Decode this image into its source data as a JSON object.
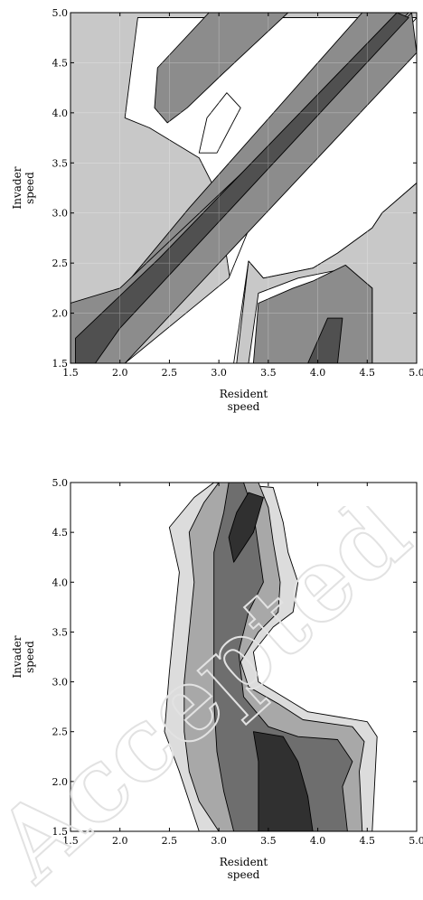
{
  "chart_data": [
    {
      "type": "contour",
      "title": "",
      "xlabel": "Resident speed",
      "xlabel_lines": [
        "Resident",
        "speed"
      ],
      "ylabel": "Invader speed",
      "ylabel_lines": [
        "Invader",
        "speed"
      ],
      "xlim": [
        1.5,
        5.0
      ],
      "ylim": [
        1.5,
        5.0
      ],
      "xticks": [
        "1.5",
        "2.0",
        "2.5",
        "3.0",
        "3.5",
        "4.0",
        "4.5",
        "5.0"
      ],
      "yticks": [
        "1.5",
        "2.0",
        "2.5",
        "3.0",
        "3.5",
        "4.0",
        "4.5",
        "5.0"
      ],
      "grid": true,
      "fill_shades": [
        "#ffffff",
        "#c8c8c8",
        "#8c8c8c",
        "#505050"
      ],
      "regions": [
        {
          "level": 1,
          "points": [
            [
              1.5,
              5.0
            ],
            [
              5.0,
              5.0
            ],
            [
              5.0,
              3.55
            ],
            [
              3.3,
              1.5
            ],
            [
              1.5,
              1.5
            ]
          ]
        },
        {
          "level": 0,
          "points": [
            [
              2.18,
              4.95
            ],
            [
              5.0,
              4.95
            ],
            [
              5.0,
              3.95
            ],
            [
              3.15,
              2.1
            ],
            [
              2.98,
              3.2
            ],
            [
              2.8,
              3.55
            ],
            [
              2.3,
              3.85
            ],
            [
              2.05,
              3.95
            ]
          ]
        },
        {
          "level": 0,
          "points": [
            [
              2.05,
              1.5
            ],
            [
              5.0,
              1.5
            ],
            [
              5.0,
              4.95
            ],
            [
              3.42,
              3.12
            ],
            [
              3.1,
              2.35
            ]
          ]
        },
        {
          "level": 2,
          "points": [
            [
              1.5,
              1.75
            ],
            [
              2.0,
              2.1
            ],
            [
              4.92,
              5.0
            ],
            [
              4.45,
              5.0
            ],
            [
              2.7,
              3.05
            ],
            [
              1.9,
              2.1
            ],
            [
              1.5,
              1.8
            ]
          ]
        },
        {
          "level": 2,
          "points": [
            [
              1.5,
              1.5
            ],
            [
              1.5,
              2.1
            ],
            [
              2.0,
              2.25
            ],
            [
              4.95,
              5.0
            ],
            [
              5.0,
              4.6
            ],
            [
              2.05,
              1.5
            ]
          ]
        },
        {
          "level": 3,
          "points": [
            [
              1.55,
              1.5
            ],
            [
              1.75,
              1.5
            ],
            [
              2.0,
              1.85
            ],
            [
              4.92,
              4.95
            ],
            [
              4.8,
              5.0
            ],
            [
              2.4,
              2.55
            ],
            [
              1.55,
              1.75
            ]
          ]
        },
        {
          "level": 0,
          "points": [
            [
              3.15,
              1.5
            ],
            [
              3.3,
              2.52
            ],
            [
              3.45,
              2.35
            ],
            [
              3.95,
              2.45
            ],
            [
              4.2,
              2.6
            ],
            [
              4.55,
              2.85
            ],
            [
              4.65,
              3.0
            ],
            [
              5.0,
              3.3
            ],
            [
              5.0,
              1.5
            ]
          ]
        },
        {
          "level": 1,
          "points": [
            [
              3.18,
              1.5
            ],
            [
              3.3,
              2.52
            ],
            [
              3.45,
              2.35
            ],
            [
              3.95,
              2.45
            ],
            [
              4.2,
              2.6
            ],
            [
              4.55,
              2.85
            ],
            [
              4.65,
              3.0
            ],
            [
              5.0,
              3.3
            ],
            [
              5.0,
              1.5
            ],
            [
              4.55,
              1.5
            ],
            [
              4.55,
              2.25
            ],
            [
              4.3,
              2.45
            ],
            [
              3.8,
              2.35
            ],
            [
              3.4,
              2.2
            ],
            [
              3.3,
              1.5
            ]
          ]
        },
        {
          "level": 2,
          "points": [
            [
              3.35,
              1.5
            ],
            [
              3.4,
              2.1
            ],
            [
              3.75,
              2.25
            ],
            [
              3.95,
              2.32
            ],
            [
              4.28,
              2.48
            ],
            [
              4.55,
              2.25
            ],
            [
              4.55,
              1.5
            ]
          ]
        },
        {
          "level": 3,
          "points": [
            [
              3.9,
              1.5
            ],
            [
              4.1,
              1.95
            ],
            [
              4.25,
              1.95
            ],
            [
              4.2,
              1.5
            ]
          ]
        },
        {
          "level": 2,
          "points": [
            [
              2.38,
              4.45
            ],
            [
              2.9,
              5.0
            ],
            [
              3.7,
              5.0
            ],
            [
              3.05,
              4.4
            ],
            [
              2.68,
              4.05
            ],
            [
              2.48,
              3.9
            ],
            [
              2.35,
              4.05
            ]
          ]
        },
        {
          "level": 0,
          "points": [
            [
              2.8,
              3.6
            ],
            [
              2.88,
              3.95
            ],
            [
              3.08,
              4.2
            ],
            [
              3.22,
              4.05
            ],
            [
              2.98,
              3.6
            ]
          ]
        }
      ]
    },
    {
      "type": "contour",
      "title": "",
      "xlabel": "Resident speed",
      "xlabel_lines": [
        "Resident",
        "speed"
      ],
      "ylabel": "Invader speed",
      "ylabel_lines": [
        "Invader",
        "speed"
      ],
      "xlim": [
        1.5,
        5.0
      ],
      "ylim": [
        1.5,
        5.0
      ],
      "xticks": [
        "1.5",
        "2.0",
        "2.5",
        "3.0",
        "3.5",
        "4.0",
        "4.5",
        "5.0"
      ],
      "yticks": [
        "1.5",
        "2.0",
        "2.5",
        "3.0",
        "3.5",
        "4.0",
        "4.5",
        "5.0"
      ],
      "grid": false,
      "fill_shades": [
        "#ffffff",
        "#dcdcdc",
        "#a8a8a8",
        "#6e6e6e",
        "#303030"
      ],
      "regions": [
        {
          "level": 1,
          "points": [
            [
              2.8,
              1.5
            ],
            [
              4.55,
              1.5
            ],
            [
              4.6,
              2.45
            ],
            [
              4.5,
              2.6
            ],
            [
              3.9,
              2.7
            ],
            [
              3.65,
              2.85
            ],
            [
              3.4,
              3.0
            ],
            [
              3.35,
              3.3
            ],
            [
              3.55,
              3.55
            ],
            [
              3.75,
              3.7
            ],
            [
              3.8,
              4.0
            ],
            [
              3.7,
              4.3
            ],
            [
              3.65,
              4.6
            ],
            [
              3.55,
              4.95
            ],
            [
              2.95,
              5.0
            ],
            [
              2.75,
              4.85
            ],
            [
              2.5,
              4.55
            ],
            [
              2.6,
              4.1
            ],
            [
              2.55,
              3.6
            ],
            [
              2.5,
              3.1
            ],
            [
              2.45,
              2.5
            ],
            [
              2.6,
              2.1
            ],
            [
              2.7,
              1.8
            ]
          ]
        },
        {
          "level": 2,
          "points": [
            [
              3.0,
              1.5
            ],
            [
              4.45,
              1.5
            ],
            [
              4.42,
              2.1
            ],
            [
              4.47,
              2.4
            ],
            [
              4.35,
              2.55
            ],
            [
              3.85,
              2.62
            ],
            [
              3.6,
              2.78
            ],
            [
              3.3,
              2.95
            ],
            [
              3.22,
              3.2
            ],
            [
              3.4,
              3.5
            ],
            [
              3.6,
              3.7
            ],
            [
              3.62,
              4.0
            ],
            [
              3.55,
              4.4
            ],
            [
              3.5,
              4.75
            ],
            [
              3.4,
              5.0
            ],
            [
              3.0,
              5.0
            ],
            [
              2.85,
              4.8
            ],
            [
              2.7,
              4.5
            ],
            [
              2.75,
              4.0
            ],
            [
              2.7,
              3.5
            ],
            [
              2.65,
              3.0
            ],
            [
              2.65,
              2.5
            ],
            [
              2.7,
              2.1
            ],
            [
              2.8,
              1.8
            ]
          ]
        },
        {
          "level": 3,
          "points": [
            [
              3.15,
              1.5
            ],
            [
              4.3,
              1.5
            ],
            [
              4.25,
              1.95
            ],
            [
              4.35,
              2.2
            ],
            [
              4.2,
              2.42
            ],
            [
              3.8,
              2.45
            ],
            [
              3.5,
              2.55
            ],
            [
              3.25,
              2.85
            ],
            [
              3.2,
              3.3
            ],
            [
              3.3,
              3.7
            ],
            [
              3.45,
              4.0
            ],
            [
              3.4,
              4.35
            ],
            [
              3.35,
              4.7
            ],
            [
              3.25,
              5.0
            ],
            [
              3.1,
              5.0
            ],
            [
              3.05,
              4.7
            ],
            [
              2.95,
              4.3
            ],
            [
              2.95,
              3.8
            ],
            [
              2.95,
              3.3
            ],
            [
              2.95,
              2.8
            ],
            [
              2.98,
              2.3
            ],
            [
              3.05,
              1.9
            ]
          ]
        },
        {
          "level": 4,
          "points": [
            [
              3.4,
              1.5
            ],
            [
              3.95,
              1.5
            ],
            [
              3.9,
              1.85
            ],
            [
              3.8,
              2.2
            ],
            [
              3.65,
              2.45
            ],
            [
              3.35,
              2.5
            ],
            [
              3.4,
              2.2
            ],
            [
              3.4,
              1.85
            ]
          ]
        },
        {
          "level": 4,
          "points": [
            [
              3.15,
              4.2
            ],
            [
              3.35,
              4.5
            ],
            [
              3.45,
              4.85
            ],
            [
              3.3,
              4.9
            ],
            [
              3.18,
              4.7
            ],
            [
              3.1,
              4.45
            ]
          ]
        }
      ]
    }
  ],
  "watermark": {
    "text": "Accepted manuscript",
    "color": "#e2e2e2"
  }
}
